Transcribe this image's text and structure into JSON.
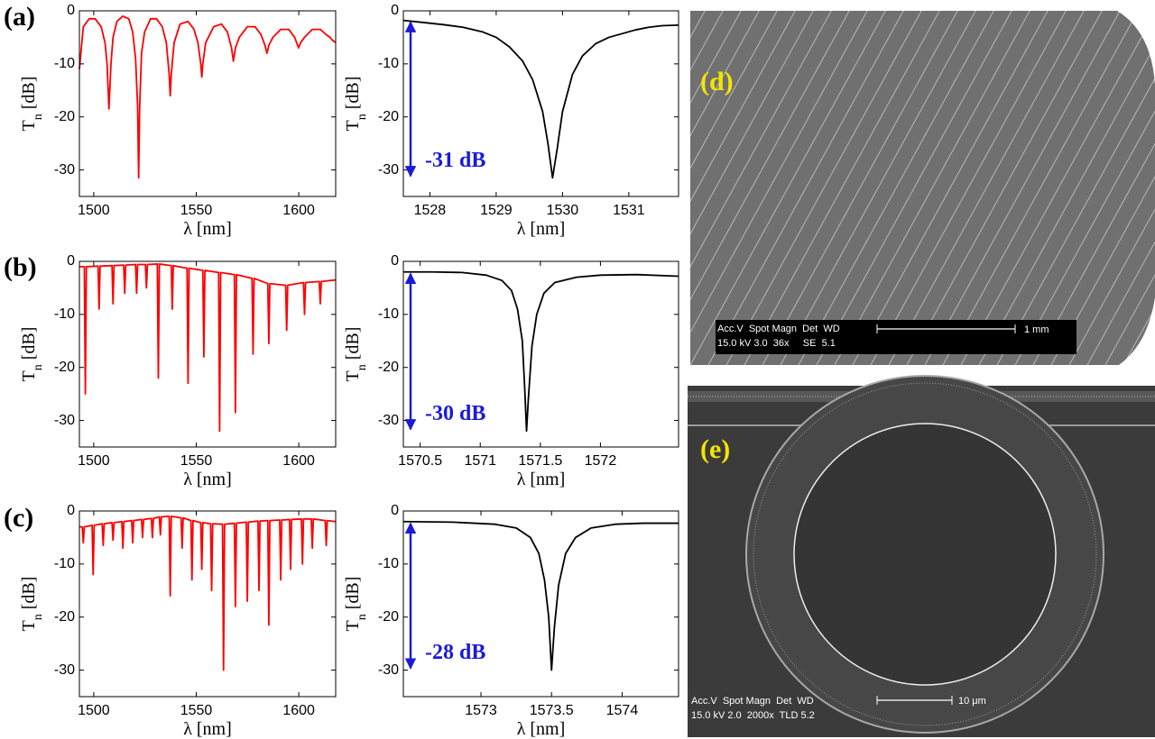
{
  "chart_data": [
    {
      "type": "line",
      "xlabel": "λ [nm]",
      "ylabel": {
        "main": "T",
        "sub": "n",
        "unit": "[dB]"
      },
      "xlim": [
        1493,
        1618
      ],
      "xticks": [
        1500,
        1550,
        1600
      ],
      "ylim": [
        -35,
        0
      ],
      "yticks": [
        0,
        -10,
        -20,
        -30
      ],
      "x": [
        1493,
        1494.9,
        1497.8,
        1500.7,
        1503.6,
        1505.5,
        1506.5,
        1507.4,
        1508.4,
        1509.4,
        1511.3,
        1514.2,
        1517.1,
        1519,
        1520.4,
        1521.4,
        1521.9,
        1522.4,
        1523.3,
        1524.8,
        1527.7,
        1530.6,
        1533.4,
        1535.4,
        1536.8,
        1537.3,
        1537.8,
        1539.2,
        1542.1,
        1546,
        1548.9,
        1550.8,
        1552.2,
        1552.7,
        1553.2,
        1554.6,
        1558.5,
        1562.3,
        1565.2,
        1567.2,
        1568.1,
        1569.1,
        1571,
        1574.9,
        1578.7,
        1581.6,
        1583.5,
        1584.5,
        1585.4,
        1587.4,
        1591.2,
        1595.1,
        1598,
        1599.9,
        1600.9,
        1602.8,
        1606.6,
        1610.5,
        1613.4,
        1615.3,
        1616.3,
        1618
      ],
      "series": [
        {
          "color": "#ff0000",
          "values": [
            -11,
            -3,
            -1.5,
            -1.5,
            -3,
            -6,
            -10,
            -18.5,
            -10,
            -5,
            -2,
            -1,
            -1.5,
            -4,
            -9,
            -18,
            -31.5,
            -18,
            -8,
            -4,
            -1.5,
            -1.5,
            -3,
            -6,
            -12,
            -16,
            -12,
            -6,
            -2.5,
            -2,
            -3.5,
            -6,
            -10,
            -12.5,
            -10,
            -6,
            -3,
            -2.5,
            -4,
            -7,
            -9.5,
            -7,
            -5,
            -3,
            -3,
            -4.5,
            -6.5,
            -8,
            -6.5,
            -5,
            -3.5,
            -3.5,
            -5,
            -7,
            -6,
            -5,
            -3.5,
            -3.5,
            -4.5,
            -5,
            -5.5,
            -6
          ]
        }
      ]
    },
    {
      "type": "line",
      "xlabel": "λ [nm]",
      "ylabel": {
        "main": "T",
        "sub": "n",
        "unit": "[dB]"
      },
      "xlim": [
        1527.6,
        1531.75
      ],
      "xticks": [
        1528,
        1529,
        1530,
        1531
      ],
      "ylim": [
        -35,
        0
      ],
      "yticks": [
        0,
        -10,
        -20,
        -30
      ],
      "annotation": "-31 dB",
      "x": [
        1527.6,
        1527.9,
        1528.2,
        1528.5,
        1528.8,
        1529.0,
        1529.2,
        1529.4,
        1529.55,
        1529.7,
        1529.78,
        1529.85,
        1529.92,
        1530.0,
        1530.15,
        1530.3,
        1530.5,
        1530.7,
        1530.9,
        1531.1,
        1531.3,
        1531.5,
        1531.75
      ],
      "series": [
        {
          "color": "#000000",
          "values": [
            -1.8,
            -2.2,
            -2.6,
            -3.1,
            -4,
            -5,
            -6.8,
            -9.5,
            -13,
            -19,
            -25,
            -31.5,
            -26,
            -19,
            -12,
            -8.5,
            -6.2,
            -5,
            -4.3,
            -3.6,
            -3.1,
            -2.8,
            -2.7
          ]
        }
      ]
    },
    {
      "type": "line",
      "xlabel": "λ [nm]",
      "ylabel": {
        "main": "T",
        "sub": "n",
        "unit": "[dB]"
      },
      "xlim": [
        1493,
        1618
      ],
      "xticks": [
        1500,
        1550,
        1600
      ],
      "ylim": [
        -35,
        0
      ],
      "yticks": [
        0,
        -10,
        -20,
        -30
      ],
      "x": [
        1493,
        1495.4,
        1495.9,
        1496.4,
        1502.1,
        1502.6,
        1503.1,
        1508.9,
        1509.4,
        1509.9,
        1514.6,
        1515.1,
        1515.6,
        1520.4,
        1520.9,
        1521.4,
        1525.2,
        1525.7,
        1526.2,
        1531,
        1531.5,
        1532,
        1537.8,
        1538.3,
        1538.8,
        1545.5,
        1546,
        1546.5,
        1553.2,
        1553.7,
        1554.2,
        1560.9,
        1561.4,
        1561.9,
        1568.6,
        1569.1,
        1569.6,
        1577.2,
        1577.7,
        1578.2,
        1584.9,
        1585.4,
        1585.9,
        1593.6,
        1594.1,
        1594.6,
        1602.3,
        1602.8,
        1603.3,
        1610,
        1610.5,
        1611,
        1618
      ],
      "series": [
        {
          "color": "#ff0000",
          "values": [
            -1,
            -1,
            -25,
            -1,
            -0.9,
            -9,
            -0.9,
            -0.8,
            -8,
            -0.8,
            -0.7,
            -6,
            -0.7,
            -0.6,
            -6,
            -0.6,
            -0.6,
            -5,
            -0.6,
            -0.5,
            -22,
            -0.5,
            -0.8,
            -9,
            -0.8,
            -1.3,
            -23,
            -1.3,
            -1.7,
            -18,
            -1.7,
            -2.1,
            -32,
            -2.1,
            -2.5,
            -28.5,
            -2.5,
            -3.2,
            -17.5,
            -3.2,
            -4.2,
            -15.5,
            -4.2,
            -4.5,
            -13,
            -4.5,
            -4,
            -10,
            -4,
            -3.8,
            -8,
            -3.8,
            -3.5
          ]
        }
      ]
    },
    {
      "type": "line",
      "xlabel": "λ [nm]",
      "ylabel": {
        "main": "T",
        "sub": "n",
        "unit": "[dB]"
      },
      "xlim": [
        1570.36,
        1572.65
      ],
      "xticks": [
        1570.5,
        1571,
        1571.5,
        1572
      ],
      "ylim": [
        -35,
        0
      ],
      "yticks": [
        0,
        -10,
        -20,
        -30
      ],
      "annotation": "-30 dB",
      "x": [
        1570.36,
        1570.6,
        1570.85,
        1571.05,
        1571.18,
        1571.26,
        1571.31,
        1571.35,
        1571.37,
        1571.385,
        1571.4,
        1571.43,
        1571.47,
        1571.53,
        1571.62,
        1571.8,
        1572.0,
        1572.3,
        1572.65
      ],
      "series": [
        {
          "color": "#000000",
          "values": [
            -2,
            -2,
            -2.1,
            -2.6,
            -3.6,
            -5.5,
            -9,
            -15,
            -24,
            -32,
            -26,
            -16,
            -10,
            -6,
            -4,
            -3,
            -2.6,
            -2.5,
            -2.8
          ]
        }
      ]
    },
    {
      "type": "line",
      "xlabel": "λ [nm]",
      "ylabel": {
        "main": "T",
        "sub": "n",
        "unit": "[dB]"
      },
      "xlim": [
        1493,
        1618
      ],
      "xticks": [
        1500,
        1550,
        1600
      ],
      "ylim": [
        -35,
        0
      ],
      "yticks": [
        0,
        -10,
        -20,
        -30
      ],
      "x": [
        1493,
        1494.4,
        1494.9,
        1495.4,
        1499.2,
        1499.7,
        1500.2,
        1504.1,
        1504.6,
        1505.1,
        1508.9,
        1509.4,
        1509.9,
        1513.7,
        1514.2,
        1514.7,
        1518.5,
        1519,
        1519.5,
        1523.3,
        1523.8,
        1524.3,
        1528.1,
        1528.6,
        1529.1,
        1532,
        1532.5,
        1533,
        1536.8,
        1537.3,
        1537.8,
        1542.6,
        1543.1,
        1543.6,
        1547.4,
        1547.9,
        1548.4,
        1552.2,
        1552.7,
        1553.2,
        1557,
        1557.5,
        1558,
        1562.8,
        1563.3,
        1563.8,
        1568.6,
        1569.1,
        1569.6,
        1574.4,
        1574.9,
        1575.4,
        1580.1,
        1580.6,
        1581.1,
        1584.9,
        1585.4,
        1585.9,
        1590.7,
        1591.2,
        1591.7,
        1595.5,
        1596,
        1596.5,
        1601.3,
        1601.8,
        1602.3,
        1606.1,
        1606.6,
        1607.1,
        1612.9,
        1613.4,
        1613.9,
        1618
      ],
      "series": [
        {
          "color": "#ff0000",
          "values": [
            -3,
            -3,
            -6,
            -3,
            -2.7,
            -12,
            -2.7,
            -2.4,
            -6.5,
            -2.4,
            -2.2,
            -5.5,
            -2.2,
            -2,
            -7,
            -2,
            -1.8,
            -6,
            -1.8,
            -1.6,
            -5,
            -1.6,
            -1.4,
            -5,
            -1.4,
            -1.1,
            -4.5,
            -1.1,
            -1,
            -16,
            -1,
            -1.3,
            -7,
            -1.3,
            -1.8,
            -13,
            -1.8,
            -2.2,
            -11,
            -2.2,
            -2.4,
            -15,
            -2.4,
            -2.5,
            -30,
            -2.5,
            -2.3,
            -18,
            -2.3,
            -2.1,
            -17,
            -2.1,
            -1.9,
            -15,
            -1.9,
            -1.8,
            -21.5,
            -1.8,
            -1.7,
            -13,
            -1.7,
            -1.6,
            -11,
            -1.6,
            -1.5,
            -10,
            -1.5,
            -1.5,
            -7,
            -1.5,
            -1.8,
            -6.5,
            -1.8,
            -2
          ]
        }
      ]
    },
    {
      "type": "line",
      "xlabel": "λ [nm]",
      "ylabel": {
        "main": "T",
        "sub": "n",
        "unit": "[dB]"
      },
      "xlim": [
        1572.45,
        1574.4
      ],
      "xticks": [
        1573,
        1573.5,
        1574
      ],
      "ylim": [
        -35,
        0
      ],
      "yticks": [
        0,
        -10,
        -20,
        -30
      ],
      "annotation": "-28 dB",
      "x": [
        1572.45,
        1572.8,
        1573.1,
        1573.25,
        1573.35,
        1573.41,
        1573.45,
        1573.48,
        1573.5,
        1573.52,
        1573.55,
        1573.6,
        1573.67,
        1573.78,
        1573.95,
        1574.15,
        1574.4
      ],
      "series": [
        {
          "color": "#000000",
          "values": [
            -2,
            -2.1,
            -2.5,
            -3.2,
            -5,
            -8,
            -13,
            -20,
            -30,
            -22,
            -14,
            -8,
            -5,
            -3.2,
            -2.5,
            -2.3,
            -2.3
          ]
        }
      ]
    }
  ],
  "panels": [
    "(a)",
    "(b)",
    "(c)",
    "(d)",
    "(e)"
  ],
  "images": [
    {
      "info": [
        "Acc.V  Spot Magn  Det  WD",
        "15.0 kV 3.0  36x     SE  5.1"
      ],
      "scale": "1 mm"
    },
    {
      "info": [
        "Acc.V  Spot Magn  Det  WD",
        "15.0 kV 2.0  2000x  TLD 5.2"
      ],
      "scale": "10 μm"
    }
  ]
}
